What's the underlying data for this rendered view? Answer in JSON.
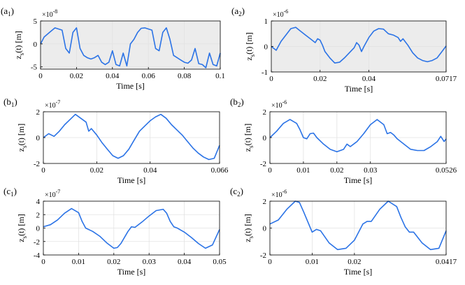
{
  "chart_data": [
    {
      "id": "a1",
      "type": "line",
      "panel_label": "(a",
      "panel_sub": "1",
      "panel_close": ")",
      "background": "#ececec",
      "xlabel": "Time [s]",
      "ylabel": {
        "pre": "z",
        "sub": "s",
        "post": "(t) [m]"
      },
      "multiplier": {
        "base": "×10",
        "exp": "-8"
      },
      "xlim": [
        0,
        0.1
      ],
      "ylim": [
        -5.5,
        5
      ],
      "xticks": [
        0,
        0.02,
        0.04,
        0.06,
        0.08,
        0.1
      ],
      "xtick_labels": [
        "0",
        "0.02",
        "0.04",
        "0.06",
        "0.08",
        "0.1"
      ],
      "yticks": [
        -5,
        0,
        5
      ],
      "ytick_labels": [
        "-5",
        "0",
        "5"
      ],
      "series": [
        {
          "name": "z_s(t)",
          "color": "#2b73e6",
          "x": [
            0,
            0.002,
            0.005,
            0.008,
            0.012,
            0.014,
            0.016,
            0.018,
            0.02,
            0.022,
            0.024,
            0.026,
            0.028,
            0.03,
            0.032,
            0.034,
            0.036,
            0.038,
            0.04,
            0.042,
            0.044,
            0.046,
            0.048,
            0.05,
            0.052,
            0.054,
            0.056,
            0.058,
            0.062,
            0.064,
            0.066,
            0.068,
            0.07,
            0.072,
            0.074,
            0.076,
            0.078,
            0.08,
            0.082,
            0.084,
            0.086,
            0.088,
            0.09,
            0.092,
            0.094,
            0.096,
            0.098,
            0.1
          ],
          "y": [
            0,
            1.5,
            2.5,
            3.5,
            3,
            -1,
            -2,
            2.5,
            3.5,
            -1,
            -2.5,
            -3,
            -3.3,
            -3,
            -2.5,
            -4,
            -4.5,
            -4,
            -1.5,
            -4.5,
            -4.8,
            -2,
            -4.8,
            0,
            1,
            2.5,
            3.4,
            3.5,
            3,
            -1,
            -1.5,
            2.5,
            3.5,
            1,
            -2.5,
            -3,
            -3.5,
            -4,
            -4.2,
            -3.5,
            -1,
            -4.3,
            -4.5,
            -5.2,
            -2,
            -4.5,
            -4.8,
            -2
          ]
        }
      ]
    },
    {
      "id": "a2",
      "type": "line",
      "panel_label": "(a",
      "panel_sub": "2",
      "panel_close": ")",
      "background": "#ececec",
      "xlabel": "Time [s]",
      "ylabel": {
        "pre": "z",
        "sub": "s",
        "post": "(t) [m]"
      },
      "multiplier": {
        "base": "×10",
        "exp": "-6"
      },
      "xlim": [
        0,
        0.0717
      ],
      "ylim": [
        -1,
        1
      ],
      "xticks": [
        0,
        0.02,
        0.04,
        0.0717
      ],
      "xtick_labels": [
        "0",
        "0.02",
        "0.04",
        "0.0717"
      ],
      "yticks": [
        -1,
        0,
        1
      ],
      "ytick_labels": [
        "-1",
        "0",
        "1"
      ],
      "series": [
        {
          "name": "z_s(t)",
          "color": "#2b73e6",
          "x": [
            0,
            0.002,
            0.004,
            0.006,
            0.008,
            0.01,
            0.012,
            0.014,
            0.016,
            0.018,
            0.019,
            0.02,
            0.021,
            0.022,
            0.024,
            0.026,
            0.028,
            0.03,
            0.032,
            0.034,
            0.035,
            0.036,
            0.037,
            0.038,
            0.04,
            0.042,
            0.044,
            0.046,
            0.048,
            0.05,
            0.052,
            0.053,
            0.054,
            0.056,
            0.058,
            0.06,
            0.062,
            0.064,
            0.066,
            0.068,
            0.07,
            0.0717
          ],
          "y": [
            0,
            -0.15,
            0.2,
            0.45,
            0.7,
            0.75,
            0.6,
            0.45,
            0.3,
            0.15,
            0.3,
            0.25,
            0.05,
            -0.2,
            -0.45,
            -0.65,
            -0.62,
            -0.45,
            -0.25,
            -0.05,
            0.15,
            0.05,
            -0.2,
            0,
            0.35,
            0.6,
            0.7,
            0.68,
            0.5,
            0.45,
            0.35,
            0.2,
            0.3,
            0.05,
            -0.25,
            -0.45,
            -0.55,
            -0.6,
            -0.55,
            -0.45,
            -0.2,
            0.02
          ]
        }
      ]
    },
    {
      "id": "b1",
      "type": "line",
      "panel_label": "(b",
      "panel_sub": "1",
      "panel_close": ")",
      "background": "#ffffff",
      "xlabel": "Time [s]",
      "ylabel": {
        "pre": "z",
        "sub": "s",
        "post": "(t) [m]"
      },
      "multiplier": {
        "base": "×10",
        "exp": "-7"
      },
      "xlim": [
        0,
        0.066
      ],
      "ylim": [
        -2,
        2
      ],
      "xticks": [
        0,
        0.02,
        0.04,
        0.066
      ],
      "xtick_labels": [
        "0",
        "0.02",
        "0.04",
        "0.066"
      ],
      "yticks": [
        -2,
        0,
        2
      ],
      "ytick_labels": [
        "-2",
        "0",
        "2"
      ],
      "series": [
        {
          "name": "z_s(t)",
          "color": "#2b73e6",
          "x": [
            0,
            0.002,
            0.004,
            0.006,
            0.008,
            0.01,
            0.012,
            0.014,
            0.016,
            0.017,
            0.018,
            0.02,
            0.022,
            0.024,
            0.026,
            0.028,
            0.03,
            0.032,
            0.034,
            0.036,
            0.038,
            0.04,
            0.042,
            0.044,
            0.046,
            0.048,
            0.05,
            0.052,
            0.054,
            0.056,
            0.058,
            0.06,
            0.062,
            0.064,
            0.066
          ],
          "y": [
            0,
            0.3,
            0.1,
            0.5,
            1.0,
            1.4,
            1.8,
            1.5,
            1.2,
            0.5,
            0.7,
            0.2,
            -0.4,
            -0.9,
            -1.4,
            -1.6,
            -1.4,
            -0.9,
            -0.2,
            0.5,
            0.9,
            1.3,
            1.6,
            1.8,
            1.5,
            1.0,
            0.6,
            0.2,
            -0.3,
            -0.8,
            -1.2,
            -1.5,
            -1.7,
            -1.6,
            -0.6
          ]
        }
      ]
    },
    {
      "id": "b2",
      "type": "line",
      "panel_label": "(b",
      "panel_sub": "2",
      "panel_close": ")",
      "background": "#ffffff",
      "xlabel": "Time [s]",
      "ylabel": {
        "pre": "z",
        "sub": "s",
        "post": "(t) [m]"
      },
      "multiplier": {
        "base": "×10",
        "exp": "-6"
      },
      "xlim": [
        0,
        0.0526
      ],
      "ylim": [
        -2,
        2
      ],
      "xticks": [
        0,
        0.01,
        0.02,
        0.03,
        0.0526
      ],
      "xtick_labels": [
        "0",
        "0.01",
        "0.02",
        "0.03",
        "0.0526"
      ],
      "yticks": [
        -2,
        0,
        2
      ],
      "ytick_labels": [
        "-2",
        "0",
        "2"
      ],
      "series": [
        {
          "name": "z_s(t)",
          "color": "#2b73e6",
          "x": [
            0,
            0.002,
            0.004,
            0.006,
            0.008,
            0.009,
            0.01,
            0.011,
            0.012,
            0.013,
            0.014,
            0.016,
            0.018,
            0.02,
            0.022,
            0.023,
            0.024,
            0.026,
            0.028,
            0.03,
            0.032,
            0.034,
            0.035,
            0.036,
            0.037,
            0.038,
            0.04,
            0.042,
            0.044,
            0.046,
            0.048,
            0.05,
            0.051,
            0.052,
            0.0526
          ],
          "y": [
            0,
            0.5,
            1.1,
            1.4,
            1.1,
            0.6,
            0.0,
            -0.1,
            0.3,
            0.35,
            0.0,
            -0.5,
            -0.9,
            -1.1,
            -0.9,
            -0.5,
            -0.7,
            -0.3,
            0.3,
            1.0,
            1.4,
            1.0,
            0.3,
            0.4,
            0.2,
            -0.1,
            -0.5,
            -0.9,
            -1.0,
            -1.0,
            -0.7,
            -0.3,
            0.1,
            -0.3,
            -0.1
          ]
        }
      ]
    },
    {
      "id": "c1",
      "type": "line",
      "panel_label": "(c",
      "panel_sub": "1",
      "panel_close": ")",
      "background": "#ffffff",
      "xlabel": "Time [s]",
      "ylabel": {
        "pre": "z",
        "sub": "s",
        "post": "(t) [m]"
      },
      "multiplier": {
        "base": "×10",
        "exp": "-7"
      },
      "xlim": [
        0,
        0.05
      ],
      "ylim": [
        -4,
        4
      ],
      "xticks": [
        0,
        0.01,
        0.02,
        0.03,
        0.04,
        0.05
      ],
      "xtick_labels": [
        "0",
        "0.01",
        "0.02",
        "0.03",
        "0.04",
        "0.05"
      ],
      "yticks": [
        -4,
        -2,
        0,
        2,
        4
      ],
      "ytick_labels": [
        "-4",
        "-2",
        "0",
        "2",
        "4"
      ],
      "series": [
        {
          "name": "z_s(t)",
          "color": "#2b73e6",
          "x": [
            0,
            0.002,
            0.004,
            0.006,
            0.008,
            0.01,
            0.011,
            0.012,
            0.014,
            0.016,
            0.018,
            0.02,
            0.021,
            0.022,
            0.024,
            0.025,
            0.026,
            0.028,
            0.03,
            0.032,
            0.034,
            0.035,
            0.036,
            0.037,
            0.038,
            0.04,
            0.042,
            0.044,
            0.046,
            0.048,
            0.05
          ],
          "y": [
            0.2,
            0.5,
            1.2,
            2.2,
            2.9,
            2.3,
            1.0,
            0.0,
            -0.5,
            -1.2,
            -2.2,
            -3.0,
            -2.9,
            -2.3,
            -0.5,
            0.2,
            0.1,
            0.9,
            1.8,
            2.6,
            2.8,
            2.2,
            1.0,
            0.2,
            0.0,
            -0.6,
            -1.4,
            -2.3,
            -3.0,
            -2.5,
            -0.2
          ]
        }
      ]
    },
    {
      "id": "c2",
      "type": "line",
      "panel_label": "(c",
      "panel_sub": "2",
      "panel_close": ")",
      "background": "#ffffff",
      "xlabel": "Time [s]",
      "ylabel": {
        "pre": "z",
        "sub": "s",
        "post": "(t) [m]"
      },
      "multiplier": {
        "base": "×10",
        "exp": "-6"
      },
      "xlim": [
        0,
        0.0417
      ],
      "ylim": [
        -2,
        2
      ],
      "xticks": [
        0,
        0.01,
        0.02,
        0.0417
      ],
      "xtick_labels": [
        "0",
        "0.01",
        "0.02",
        "0.0417"
      ],
      "yticks": [
        -2,
        0,
        2
      ],
      "ytick_labels": [
        "-2",
        "0",
        "2"
      ],
      "series": [
        {
          "name": "z_s(t)",
          "color": "#2b73e6",
          "x": [
            0,
            0.002,
            0.004,
            0.006,
            0.007,
            0.008,
            0.01,
            0.011,
            0.012,
            0.014,
            0.016,
            0.018,
            0.02,
            0.022,
            0.023,
            0.024,
            0.026,
            0.028,
            0.03,
            0.031,
            0.032,
            0.033,
            0.034,
            0.036,
            0.038,
            0.04,
            0.0417
          ],
          "y": [
            0.3,
            0.6,
            1.4,
            2.0,
            1.9,
            1.2,
            -0.3,
            -0.1,
            -0.2,
            -1.1,
            -1.6,
            -1.5,
            -0.9,
            0.3,
            0.5,
            0.5,
            1.4,
            2.0,
            1.6,
            0.8,
            0.1,
            -0.3,
            -0.3,
            -1.1,
            -1.6,
            -1.5,
            -0.2
          ]
        }
      ]
    }
  ]
}
